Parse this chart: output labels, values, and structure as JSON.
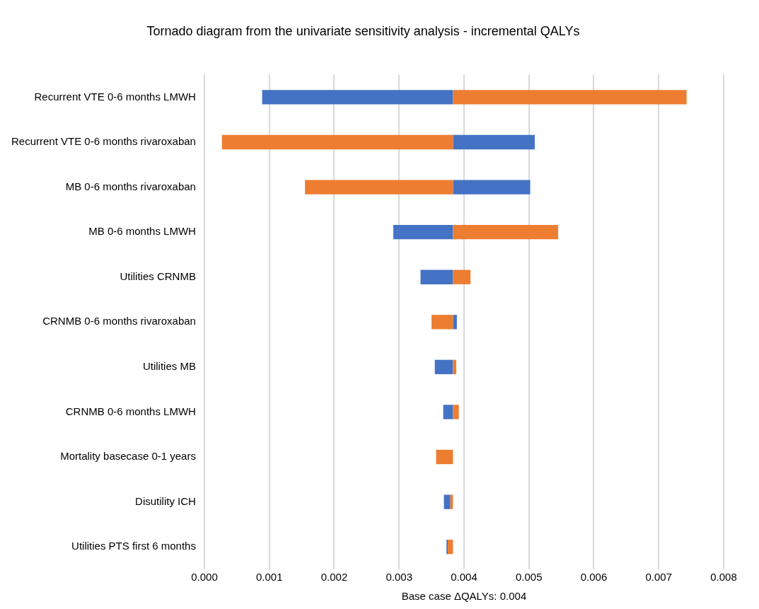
{
  "chart_data": {
    "type": "bar",
    "orientation": "horizontal",
    "title": "Tornado diagram from the univariate sensitivity analysis - incremental QALYs",
    "xlabel": "Base case ΔQALYs: 0.004",
    "categories": [
      "Recurrent VTE 0-6 months LMWH",
      "Recurrent VTE 0-6 months rivaroxaban",
      "MB 0-6 months rivaroxaban",
      "MB 0-6 months LMWH",
      "Utilities CRNMB",
      "CRNMB 0-6 months rivaroxaban",
      "Utilities MB",
      "CRNMB 0-6 months LMWH",
      "Mortality basecase 0-1 years",
      "Disutility ICH",
      "Utilities PTS first 6 months"
    ],
    "series": [
      {
        "color": "#4472c4",
        "base": [
          0.00089,
          0.00383,
          0.00383,
          0.00291,
          0.00333,
          0.00383,
          0.00355,
          0.00368,
          null,
          0.00369,
          0.00373
        ],
        "values": [
          0.00294,
          0.00126,
          0.00119,
          0.00092,
          0.0005,
          6e-05,
          0.00028,
          0.00015,
          null,
          0.0001,
          2e-05
        ]
      },
      {
        "color": "#ed7d31",
        "base": [
          0.00383,
          0.00027,
          0.00155,
          0.00383,
          0.00383,
          0.0035,
          0.00383,
          0.00383,
          0.00357,
          0.00379,
          0.00375
        ],
        "values": [
          0.0036,
          0.00356,
          0.00228,
          0.00162,
          0.00027,
          0.00033,
          5e-05,
          9e-05,
          0.00026,
          4e-05,
          8e-05
        ]
      }
    ],
    "xlim": [
      0,
      0.008
    ],
    "xticks": [
      {
        "value": 0,
        "label": "0.000"
      },
      {
        "value": 0.001,
        "label": "0.001"
      },
      {
        "value": 0.002,
        "label": "0.002"
      },
      {
        "value": 0.003,
        "label": "0.003"
      },
      {
        "value": 0.004,
        "label": "0.004"
      },
      {
        "value": 0.005,
        "label": "0.005"
      },
      {
        "value": 0.006,
        "label": "0.006"
      },
      {
        "value": 0.007,
        "label": "0.007"
      },
      {
        "value": 0.008,
        "label": "0.008"
      }
    ],
    "grid": "x"
  }
}
